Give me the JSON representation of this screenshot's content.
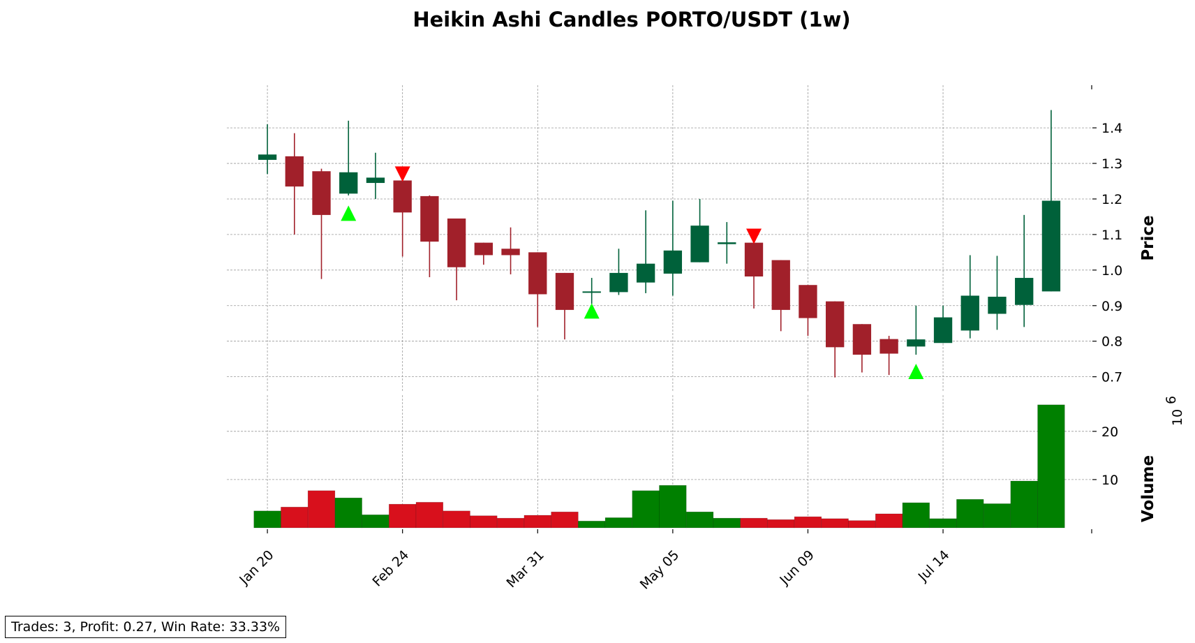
{
  "title": "Heikin Ashi Candles PORTO/USDT (1w)",
  "stats": "Trades: 3, Profit: 0.27, Win Rate: 33.33%",
  "colors": {
    "up_candle": "#00613a",
    "down_candle": "#a1202a",
    "up_volume": "#008000",
    "down_volume": "#d8101c",
    "buy_marker": "#00ff00",
    "sell_marker": "#ff0000",
    "grid": "#999999"
  },
  "chart_data": {
    "type": "candlestick",
    "title": "Heikin Ashi Candles PORTO/USDT (1w)",
    "price_axis": {
      "label": "Price",
      "ticks": [
        "0.7",
        "0.8",
        "0.9",
        "1.0",
        "1.1",
        "1.2",
        "1.3",
        "1.4"
      ],
      "ylim": [
        0.66,
        1.52
      ]
    },
    "volume_axis": {
      "label": "Volume",
      "multiplier": "10",
      "multiplier_exp": "6",
      "ticks": [
        "10",
        "20"
      ],
      "ylim": [
        0,
        27.5
      ]
    },
    "x_ticks": [
      {
        "index": 0,
        "label": "Jan 20"
      },
      {
        "index": 5,
        "label": "Feb 24"
      },
      {
        "index": 10,
        "label": "Mar 31"
      },
      {
        "index": 15,
        "label": "May 05"
      },
      {
        "index": 20,
        "label": "Jun 09"
      },
      {
        "index": 25,
        "label": "Jul 14"
      }
    ],
    "x_range": [
      -1.5,
      30.5
    ],
    "grid": true,
    "candles": [
      {
        "open": 1.31,
        "close": 1.325,
        "high": 1.41,
        "low": 1.27,
        "volume": 3.5
      },
      {
        "open": 1.32,
        "close": 1.235,
        "high": 1.385,
        "low": 1.1,
        "volume": 4.3
      },
      {
        "open": 1.278,
        "close": 1.155,
        "high": 1.285,
        "low": 0.975,
        "volume": 7.7
      },
      {
        "open": 1.215,
        "close": 1.275,
        "high": 1.42,
        "low": 1.21,
        "volume": 6.2
      },
      {
        "open": 1.245,
        "close": 1.26,
        "high": 1.33,
        "low": 1.2,
        "volume": 2.7
      },
      {
        "open": 1.252,
        "close": 1.162,
        "high": 1.265,
        "low": 1.038,
        "volume": 4.9
      },
      {
        "open": 1.208,
        "close": 1.08,
        "high": 1.21,
        "low": 0.98,
        "volume": 5.3
      },
      {
        "open": 1.145,
        "close": 1.008,
        "high": 1.145,
        "low": 0.915,
        "volume": 3.5
      },
      {
        "open": 1.077,
        "close": 1.042,
        "high": 1.077,
        "low": 1.015,
        "volume": 2.5
      },
      {
        "open": 1.06,
        "close": 1.042,
        "high": 1.12,
        "low": 0.988,
        "volume": 2.0
      },
      {
        "open": 1.05,
        "close": 0.932,
        "high": 1.05,
        "low": 0.84,
        "volume": 2.6
      },
      {
        "open": 0.992,
        "close": 0.888,
        "high": 0.992,
        "low": 0.805,
        "volume": 3.3
      },
      {
        "open": 0.938,
        "close": 0.94,
        "high": 0.978,
        "low": 0.905,
        "volume": 1.4
      },
      {
        "open": 0.938,
        "close": 0.992,
        "high": 1.06,
        "low": 0.93,
        "volume": 2.1
      },
      {
        "open": 0.965,
        "close": 1.018,
        "high": 1.168,
        "low": 0.935,
        "volume": 7.7
      },
      {
        "open": 0.99,
        "close": 1.055,
        "high": 1.195,
        "low": 0.928,
        "volume": 8.8
      },
      {
        "open": 1.022,
        "close": 1.125,
        "high": 1.2,
        "low": 1.022,
        "volume": 3.3
      },
      {
        "open": 1.073,
        "close": 1.078,
        "high": 1.135,
        "low": 1.018,
        "volume": 2.0
      },
      {
        "open": 1.077,
        "close": 0.982,
        "high": 1.077,
        "low": 0.892,
        "volume": 2.0
      },
      {
        "open": 1.028,
        "close": 0.888,
        "high": 1.028,
        "low": 0.828,
        "volume": 1.7
      },
      {
        "open": 0.958,
        "close": 0.865,
        "high": 0.958,
        "low": 0.815,
        "volume": 2.3
      },
      {
        "open": 0.912,
        "close": 0.783,
        "high": 0.912,
        "low": 0.698,
        "volume": 1.9
      },
      {
        "open": 0.848,
        "close": 0.762,
        "high": 0.848,
        "low": 0.712,
        "volume": 1.5
      },
      {
        "open": 0.806,
        "close": 0.765,
        "high": 0.815,
        "low": 0.705,
        "volume": 2.9
      },
      {
        "open": 0.785,
        "close": 0.805,
        "high": 0.9,
        "low": 0.762,
        "volume": 5.2
      },
      {
        "open": 0.795,
        "close": 0.867,
        "high": 0.9,
        "low": 0.795,
        "volume": 1.9
      },
      {
        "open": 0.83,
        "close": 0.928,
        "high": 1.042,
        "low": 0.808,
        "volume": 5.9
      },
      {
        "open": 0.877,
        "close": 0.925,
        "high": 1.04,
        "low": 0.832,
        "volume": 5.0
      },
      {
        "open": 0.902,
        "close": 0.978,
        "high": 1.155,
        "low": 0.84,
        "volume": 9.7
      },
      {
        "open": 0.94,
        "close": 1.195,
        "high": 1.45,
        "low": 0.94,
        "volume": 25.5
      }
    ],
    "buy_signals": [
      {
        "index": 3,
        "price": 1.16
      },
      {
        "index": 12,
        "price": 0.885
      },
      {
        "index": 24,
        "price": 0.715
      }
    ],
    "sell_signals": [
      {
        "index": 5,
        "price": 1.27
      },
      {
        "index": 18,
        "price": 1.095
      }
    ]
  }
}
